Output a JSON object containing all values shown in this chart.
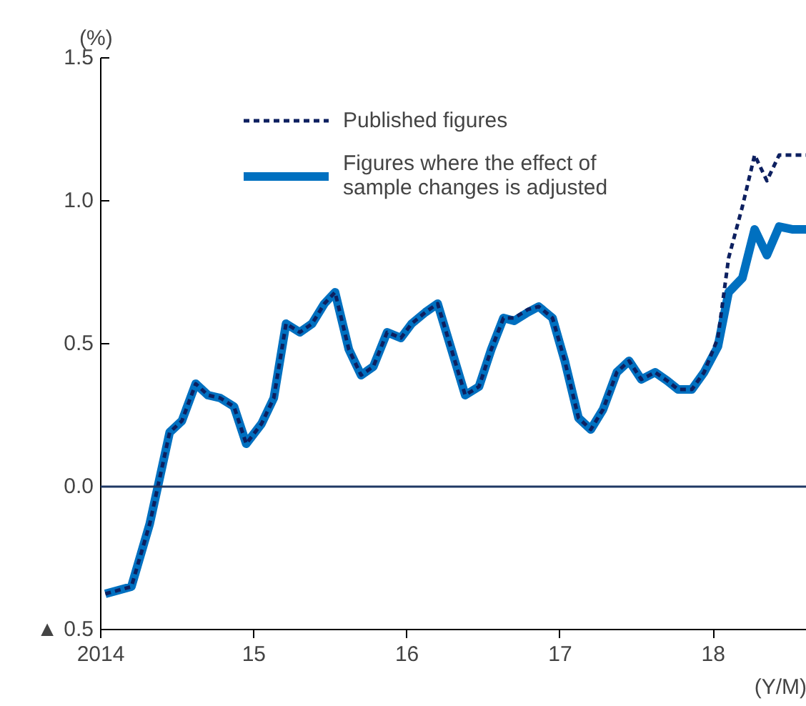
{
  "chart_data": {
    "type": "line",
    "ylabel": "(%)",
    "xlabel": "(Y/M)",
    "xlim": [
      2014,
      2018.61
    ],
    "xticks": [
      {
        "value": 2014,
        "label": "2014"
      },
      {
        "value": 2015,
        "label": "15"
      },
      {
        "value": 2016,
        "label": "16"
      },
      {
        "value": 2017,
        "label": "17"
      },
      {
        "value": 2018,
        "label": "18"
      }
    ],
    "ylim": [
      -0.5,
      1.5
    ],
    "yticks": [
      {
        "value": -0.5,
        "label": "▲ 0.5"
      },
      {
        "value": 0,
        "label": "0.0"
      },
      0.5,
      {
        "value": 1,
        "label": "1.0"
      },
      1.5
    ],
    "x": [
      2014.03,
      2014.2,
      2014.32,
      2014.45,
      2014.53,
      2014.62,
      2014.7,
      2014.78,
      2014.87,
      2014.95,
      2015.05,
      2015.13,
      2015.21,
      2015.3,
      2015.38,
      2015.46,
      2015.53,
      2015.62,
      2015.7,
      2015.78,
      2015.87,
      2015.96,
      2016.03,
      2016.12,
      2016.2,
      2016.29,
      2016.38,
      2016.47,
      2016.55,
      2016.63,
      2016.7,
      2016.79,
      2016.86,
      2016.95,
      2017.03,
      2017.12,
      2017.2,
      2017.28,
      2017.37,
      2017.45,
      2017.53,
      2017.62,
      2017.7,
      2017.77,
      2017.86,
      2017.94,
      2018.03,
      2018.1,
      2018.19,
      2018.27,
      2018.35,
      2018.43,
      2018.52,
      2018.61
    ],
    "series": [
      {
        "name": "Published figures",
        "color": "#0d2060",
        "line_style": "dashed",
        "values": [
          -0.375,
          -0.35,
          -0.13,
          0.19,
          0.23,
          0.36,
          0.32,
          0.31,
          0.28,
          0.15,
          0.22,
          0.31,
          0.57,
          0.54,
          0.57,
          0.64,
          0.68,
          0.48,
          0.39,
          0.42,
          0.54,
          0.52,
          0.57,
          0.61,
          0.64,
          0.48,
          0.32,
          0.35,
          0.48,
          0.59,
          0.59,
          0.62,
          0.63,
          0.59,
          0.44,
          0.24,
          0.2,
          0.27,
          0.4,
          0.44,
          0.375,
          0.4,
          0.37,
          0.34,
          0.34,
          0.4,
          0.52,
          0.8,
          0.98,
          1.16,
          1.07,
          1.16,
          1.16,
          1.16
        ]
      },
      {
        "name": "Figures where the effect of sample changes is adjusted",
        "color": "#0070c0",
        "line_style": "solid",
        "values": [
          -0.375,
          -0.35,
          -0.13,
          0.19,
          0.23,
          0.36,
          0.32,
          0.31,
          0.28,
          0.15,
          0.22,
          0.31,
          0.57,
          0.54,
          0.57,
          0.64,
          0.68,
          0.48,
          0.39,
          0.42,
          0.54,
          0.52,
          0.57,
          0.61,
          0.64,
          0.48,
          0.32,
          0.35,
          0.48,
          0.59,
          0.58,
          0.61,
          0.63,
          0.59,
          0.44,
          0.24,
          0.2,
          0.27,
          0.4,
          0.44,
          0.375,
          0.4,
          0.37,
          0.34,
          0.34,
          0.4,
          0.49,
          0.68,
          0.73,
          0.9,
          0.81,
          0.91,
          0.9,
          0.9
        ]
      }
    ],
    "ref_lines": [
      {
        "axis": "y",
        "value": 0,
        "color": "#1f3864"
      }
    ],
    "legend": "top right",
    "grid": false,
    "marker": "none"
  }
}
